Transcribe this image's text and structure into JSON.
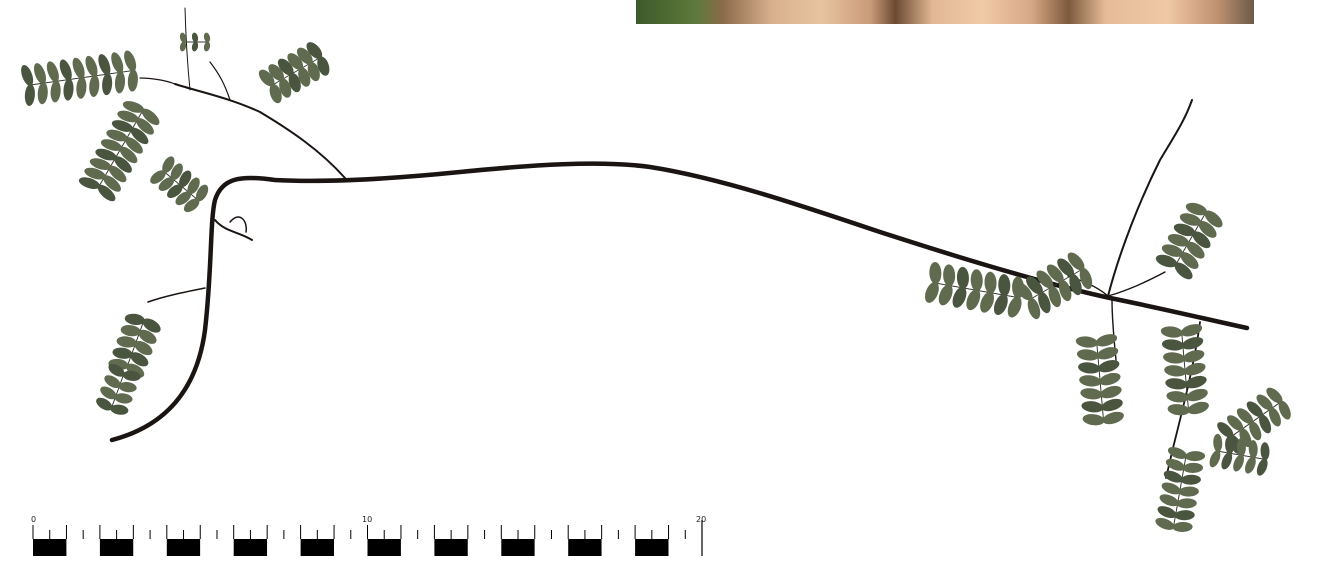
{
  "scale_bar": {
    "labels": [
      "0",
      "10",
      "20"
    ]
  },
  "colors": {
    "stem": "#1a1512",
    "leaflet": "#5f6a4f",
    "leaflet_dark": "#4a5540",
    "background": "#ffffff"
  }
}
